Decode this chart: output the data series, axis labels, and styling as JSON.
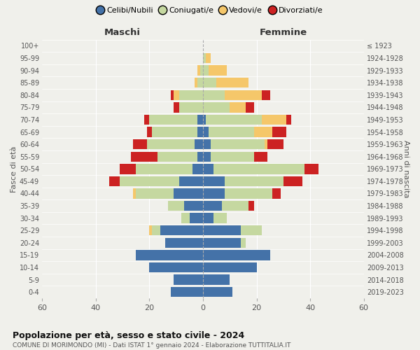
{
  "age_groups": [
    "0-4",
    "5-9",
    "10-14",
    "15-19",
    "20-24",
    "25-29",
    "30-34",
    "35-39",
    "40-44",
    "45-49",
    "50-54",
    "55-59",
    "60-64",
    "65-69",
    "70-74",
    "75-79",
    "80-84",
    "85-89",
    "90-94",
    "95-99",
    "100+"
  ],
  "birth_years": [
    "2019-2023",
    "2014-2018",
    "2009-2013",
    "2004-2008",
    "1999-2003",
    "1994-1998",
    "1989-1993",
    "1984-1988",
    "1979-1983",
    "1974-1978",
    "1969-1973",
    "1964-1968",
    "1959-1963",
    "1954-1958",
    "1949-1953",
    "1944-1948",
    "1939-1943",
    "1934-1938",
    "1929-1933",
    "1924-1928",
    "≤ 1923"
  ],
  "maschi": {
    "celibi": [
      12,
      11,
      20,
      25,
      14,
      16,
      5,
      7,
      11,
      9,
      4,
      2,
      3,
      2,
      2,
      0,
      0,
      0,
      0,
      0,
      0
    ],
    "coniugati": [
      0,
      0,
      0,
      0,
      0,
      3,
      3,
      6,
      14,
      22,
      21,
      15,
      18,
      17,
      18,
      9,
      9,
      2,
      1,
      0,
      0
    ],
    "vedove": [
      0,
      0,
      0,
      0,
      0,
      1,
      0,
      0,
      1,
      0,
      0,
      0,
      0,
      0,
      0,
      0,
      2,
      1,
      1,
      0,
      0
    ],
    "divorziate": [
      0,
      0,
      0,
      0,
      0,
      0,
      0,
      0,
      0,
      4,
      6,
      10,
      5,
      2,
      2,
      2,
      1,
      0,
      0,
      0,
      0
    ]
  },
  "femmine": {
    "nubili": [
      11,
      10,
      20,
      25,
      14,
      14,
      4,
      7,
      8,
      8,
      4,
      3,
      3,
      2,
      1,
      0,
      0,
      0,
      0,
      0,
      0
    ],
    "coniugate": [
      0,
      0,
      0,
      0,
      2,
      8,
      5,
      10,
      18,
      22,
      34,
      16,
      20,
      17,
      21,
      10,
      8,
      5,
      2,
      1,
      0
    ],
    "vedove": [
      0,
      0,
      0,
      0,
      0,
      0,
      0,
      0,
      0,
      0,
      0,
      0,
      1,
      7,
      9,
      6,
      14,
      12,
      7,
      2,
      0
    ],
    "divorziate": [
      0,
      0,
      0,
      0,
      0,
      0,
      0,
      2,
      3,
      7,
      5,
      5,
      6,
      5,
      2,
      3,
      3,
      0,
      0,
      0,
      0
    ]
  },
  "colors": {
    "celibi": "#4472a8",
    "coniugati": "#c5d8a0",
    "vedove": "#f5c76a",
    "divorziate": "#cc2222"
  },
  "title": "Popolazione per età, sesso e stato civile - 2024",
  "subtitle": "COMUNE DI MORIMONDO (MI) - Dati ISTAT 1° gennaio 2024 - Elaborazione TUTTITALIA.IT",
  "xlabel_left": "Maschi",
  "xlabel_right": "Femmine",
  "ylabel_left": "Fasce di età",
  "ylabel_right": "Anni di nascita",
  "xlim": 60,
  "bg_color": "#f0f0eb",
  "legend_labels": [
    "Celibi/Nubili",
    "Coniugati/e",
    "Vedovi/e",
    "Divorziati/e"
  ]
}
